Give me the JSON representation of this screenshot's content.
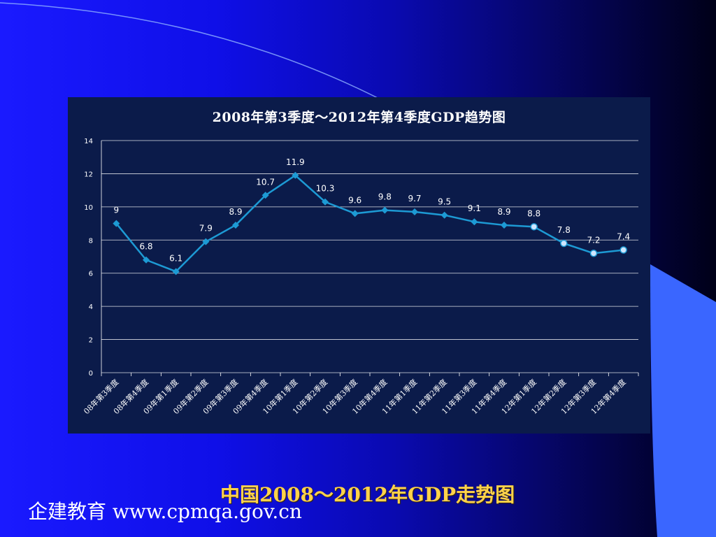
{
  "colors": {
    "line": "#1d9ad4",
    "marker_forecast": "#cfe6ff",
    "grid": "#ffffff",
    "tick_text": "#ffffff",
    "footer_title": "#ffd24a"
  },
  "footer": {
    "title": "中国2008～2012年GDP走势图",
    "brand": "企建教育 www.cpmqa.gov.cn"
  },
  "chart_data": {
    "type": "line",
    "title": "2008年第3季度～2012年第4季度GDP趋势图",
    "xlabel": "",
    "ylabel": "",
    "ylim": [
      0,
      14
    ],
    "yticks": [
      0,
      2,
      4,
      6,
      8,
      10,
      12,
      14
    ],
    "grid": true,
    "categories": [
      "08年第3季度",
      "08年第4季度",
      "09年第1季度",
      "09年第2季度",
      "09年第3季度",
      "09年第4季度",
      "10年第1季度",
      "10年第2季度",
      "10年第3季度",
      "10年第4季度",
      "11年第1季度",
      "11年第2季度",
      "11年第3季度",
      "11年第4季度",
      "12年第1季度",
      "12年第2季度",
      "12年第3季度",
      "12年第4季度"
    ],
    "values": [
      9,
      6.8,
      6.1,
      7.9,
      8.9,
      10.7,
      11.9,
      10.3,
      9.6,
      9.8,
      9.7,
      9.5,
      9.1,
      8.9,
      8.8,
      7.8,
      7.2,
      7.4
    ],
    "data_labels": [
      "9",
      "6.8",
      "6.1",
      "7.9",
      "8.9",
      "10.7",
      "11.9",
      "10.3",
      "9.6",
      "9.8",
      "9.7",
      "9.5",
      "9.1",
      "8.9",
      "8.8",
      "7.8",
      "7.2",
      "7.4"
    ],
    "marker_style": [
      "diamond",
      "diamond",
      "diamond",
      "diamond",
      "diamond",
      "diamond",
      "diamond",
      "diamond",
      "diamond",
      "diamond",
      "diamond",
      "diamond",
      "diamond",
      "diamond",
      "circle",
      "circle",
      "circle",
      "circle"
    ]
  }
}
